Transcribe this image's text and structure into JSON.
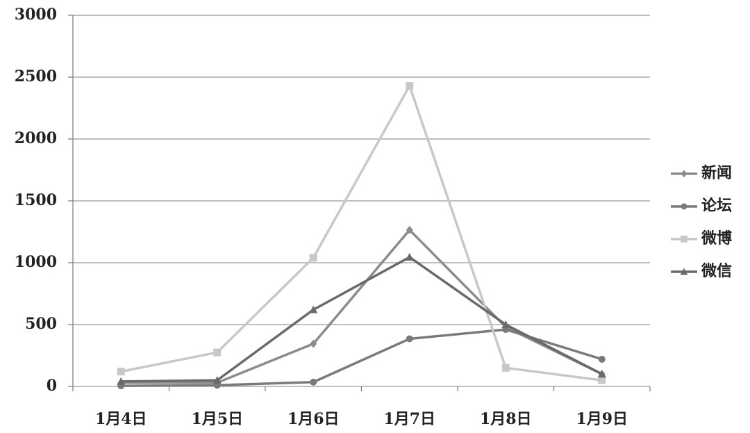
{
  "chart_data": {
    "type": "line",
    "categories": [
      "1月4日",
      "1月5日",
      "1月6日",
      "1月7日",
      "1月8日",
      "1月9日"
    ],
    "series": [
      {
        "name": "新闻",
        "color": "#8c8c8c",
        "marker": "diamond",
        "values": [
          30,
          30,
          345,
          1265,
          480,
          100
        ]
      },
      {
        "name": "论坛",
        "color": "#7a7a7a",
        "marker": "circle",
        "values": [
          5,
          10,
          35,
          385,
          460,
          220
        ]
      },
      {
        "name": "微博",
        "color": "#c8c8c8",
        "marker": "square",
        "values": [
          120,
          275,
          1040,
          2430,
          150,
          50
        ]
      },
      {
        "name": "微信",
        "color": "#6a6a6a",
        "marker": "triangle",
        "values": [
          40,
          50,
          620,
          1045,
          500,
          100
        ]
      }
    ],
    "ylim": [
      0,
      3000
    ],
    "yticks": [
      0,
      500,
      1000,
      1500,
      2000,
      2500,
      3000
    ],
    "grid": true,
    "legend": "right"
  }
}
